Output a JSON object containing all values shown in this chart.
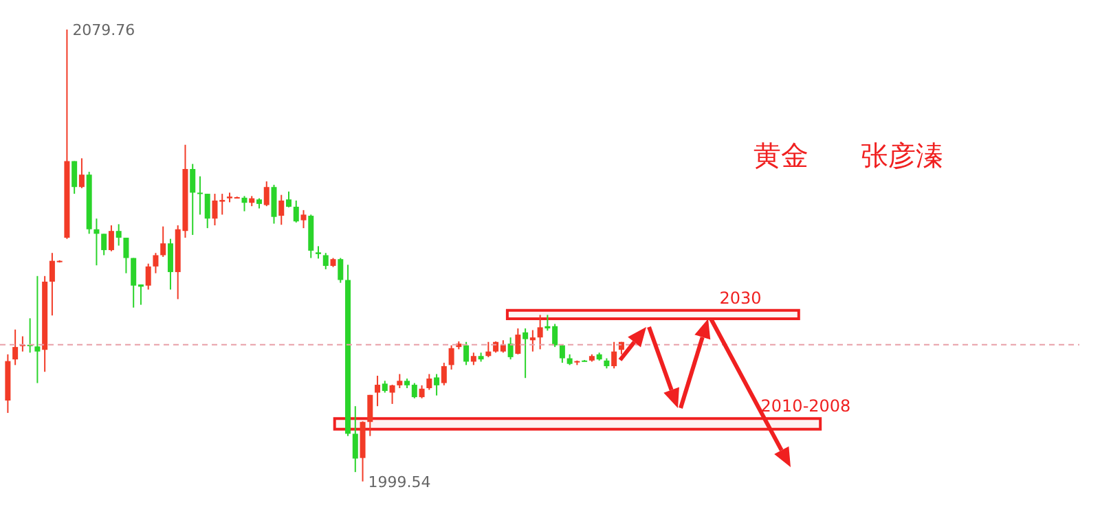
{
  "chart_data": {
    "type": "candlestick",
    "title": "黄金      张彦溱",
    "categories": [
      null,
      null,
      null,
      null,
      null,
      null,
      null,
      null,
      null,
      null,
      null,
      null,
      null,
      null,
      null,
      null,
      null,
      null,
      null,
      null,
      null,
      null,
      null,
      null,
      null,
      null,
      null,
      null,
      null,
      null,
      null,
      null,
      null,
      null,
      null,
      null,
      null,
      null,
      null,
      null,
      null,
      null,
      null,
      null,
      null,
      null,
      null,
      null,
      null,
      null,
      null,
      null,
      null,
      null,
      null,
      null,
      null,
      null,
      null,
      null,
      null,
      null,
      null,
      null,
      null,
      null,
      null,
      null,
      null,
      null,
      null,
      null,
      null,
      null,
      null,
      null,
      null,
      null,
      null,
      null,
      null,
      null,
      null,
      null
    ],
    "ohlc": [
      [
        2013.9,
        2022.1,
        2011.7,
        2020.9
      ],
      [
        2021.2,
        2026.5,
        2020.2,
        2023.4
      ],
      [
        2023.7,
        2025.3,
        2022.6,
        2023.8
      ],
      [
        2023.8,
        2028.5,
        2022.4,
        2023.6
      ],
      [
        2023.5,
        2036.0,
        2017.0,
        2022.6
      ],
      [
        2022.9,
        2036.0,
        2019.0,
        2035.0
      ],
      [
        2035.0,
        2040.1,
        2029.0,
        2038.7
      ],
      [
        2038.6,
        2038.8,
        2038.4,
        2038.7
      ],
      [
        2042.8,
        2079.76,
        2042.6,
        2056.4
      ],
      [
        2056.4,
        2056.4,
        2050.6,
        2051.8
      ],
      [
        2051.8,
        2056.9,
        2051.6,
        2054.0
      ],
      [
        2054.0,
        2054.5,
        2043.5,
        2044.3
      ],
      [
        2044.3,
        2046.2,
        2037.9,
        2043.5
      ],
      [
        2043.5,
        2043.5,
        2039.7,
        2040.6
      ],
      [
        2040.6,
        2045.0,
        2040.4,
        2044.0
      ],
      [
        2044.0,
        2045.2,
        2041.4,
        2042.8
      ],
      [
        2042.8,
        2042.8,
        2036.5,
        2039.2
      ],
      [
        2039.2,
        2039.2,
        2030.4,
        2034.3
      ],
      [
        2034.5,
        2034.5,
        2030.9,
        2034.1
      ],
      [
        2034.3,
        2038.2,
        2033.6,
        2037.7
      ],
      [
        2037.7,
        2040.1,
        2036.5,
        2039.7
      ],
      [
        2039.7,
        2044.8,
        2039.4,
        2041.8
      ],
      [
        2041.8,
        2042.6,
        2033.6,
        2036.7
      ],
      [
        2036.7,
        2045.0,
        2031.9,
        2044.3
      ],
      [
        2044.0,
        2059.3,
        2042.8,
        2055.0
      ],
      [
        2055.0,
        2055.9,
        2043.3,
        2050.8
      ],
      [
        2050.8,
        2053.7,
        2046.9,
        2050.6
      ],
      [
        2050.6,
        2050.6,
        2044.5,
        2046.2
      ],
      [
        2046.2,
        2050.6,
        2045.0,
        2049.4
      ],
      [
        2049.2,
        2050.6,
        2046.9,
        2049.5
      ],
      [
        2049.8,
        2050.8,
        2049.1,
        2050.1
      ],
      [
        2049.9,
        2050.1,
        2049.8,
        2050.0
      ],
      [
        2049.9,
        2050.2,
        2047.5,
        2049.0
      ],
      [
        2049.0,
        2050.2,
        2048.4,
        2049.8
      ],
      [
        2049.6,
        2049.8,
        2048.0,
        2048.8
      ],
      [
        2048.6,
        2052.8,
        2048.4,
        2051.8
      ],
      [
        2051.8,
        2052.2,
        2045.3,
        2046.5
      ],
      [
        2046.7,
        2050.4,
        2045.1,
        2049.4
      ],
      [
        2049.6,
        2051.0,
        2048.2,
        2048.3
      ],
      [
        2048.3,
        2049.4,
        2045.5,
        2045.7
      ],
      [
        2045.9,
        2047.7,
        2044.5,
        2046.9
      ],
      [
        2046.7,
        2046.9,
        2039.2,
        2040.5
      ],
      [
        2040.2,
        2041.3,
        2039.1,
        2039.9
      ],
      [
        2039.7,
        2040.1,
        2037.2,
        2037.8
      ],
      [
        2037.8,
        2039.2,
        2037.6,
        2039.0
      ],
      [
        2039.0,
        2039.2,
        2034.8,
        2035.3
      ],
      [
        2035.3,
        2038.0,
        2007.6,
        2008.0
      ],
      [
        2008.0,
        2012.9,
        2001.2,
        2003.6
      ],
      [
        2003.7,
        2010.2,
        1999.54,
        2010.1
      ],
      [
        2010.1,
        2014.9,
        2007.6,
        2014.9
      ],
      [
        2015.3,
        2018.3,
        2012.9,
        2016.7
      ],
      [
        2016.9,
        2017.4,
        2015.3,
        2015.6
      ],
      [
        2015.3,
        2016.7,
        2013.3,
        2016.6
      ],
      [
        2016.6,
        2018.6,
        2016.1,
        2017.4
      ],
      [
        2017.4,
        2017.8,
        2016.1,
        2016.6
      ],
      [
        2016.7,
        2017.0,
        2014.3,
        2014.5
      ],
      [
        2014.5,
        2016.6,
        2014.3,
        2016.0
      ],
      [
        2016.1,
        2018.6,
        2015.8,
        2017.8
      ],
      [
        2018.0,
        2018.6,
        2014.8,
        2016.6
      ],
      [
        2017.0,
        2020.6,
        2016.6,
        2020.0
      ],
      [
        2020.2,
        2023.7,
        2019.4,
        2023.2
      ],
      [
        2023.4,
        2024.4,
        2023.0,
        2024.0
      ],
      [
        2023.7,
        2024.3,
        2020.2,
        2020.8
      ],
      [
        2020.8,
        2022.4,
        2020.2,
        2021.8
      ],
      [
        2021.8,
        2022.4,
        2020.8,
        2021.2
      ],
      [
        2021.8,
        2024.3,
        2021.6,
        2022.6
      ],
      [
        2022.6,
        2024.4,
        2022.4,
        2024.3
      ],
      [
        2022.6,
        2024.6,
        2022.4,
        2023.8
      ],
      [
        2024.0,
        2025.1,
        2021.2,
        2021.6
      ],
      [
        2022.2,
        2026.7,
        2022.1,
        2025.6
      ],
      [
        2026.0,
        2026.7,
        2017.9,
        2024.8
      ],
      [
        2024.6,
        2026.4,
        2022.6,
        2025.1
      ],
      [
        2025.1,
        2029.1,
        2023.0,
        2026.9
      ],
      [
        2027.1,
        2029.1,
        2026.3,
        2026.7
      ],
      [
        2027.1,
        2027.5,
        2023.4,
        2023.7
      ],
      [
        2023.7,
        2023.8,
        2020.6,
        2021.4
      ],
      [
        2021.4,
        2022.1,
        2020.2,
        2020.4
      ],
      [
        2020.7,
        2021.0,
        2020.2,
        2020.9
      ],
      [
        2021.0,
        2021.1,
        2020.8,
        2020.9
      ],
      [
        2021.0,
        2022.1,
        2020.8,
        2021.8
      ],
      [
        2022.1,
        2022.4,
        2021.0,
        2021.2
      ],
      [
        2021.0,
        2021.4,
        2019.6,
        2020.0
      ],
      [
        2020.0,
        2024.3,
        2019.6,
        2022.6
      ],
      [
        2022.9,
        2024.3,
        2022.1,
        2024.3
      ]
    ],
    "colors": [
      "#f23b27",
      "#f23b27",
      "#f23b27",
      "#2ad42a",
      "#2ad42a",
      "#f23b27",
      "#f23b27",
      "#f23b27",
      "#f23b27",
      "#2ad42a",
      "#f23b27",
      "#2ad42a",
      "#2ad42a",
      "#2ad42a",
      "#f23b27",
      "#2ad42a",
      "#2ad42a",
      "#2ad42a",
      "#2ad42a",
      "#f23b27",
      "#f23b27",
      "#f23b27",
      "#2ad42a",
      "#f23b27",
      "#f23b27",
      "#2ad42a",
      "#2ad42a",
      "#2ad42a",
      "#f23b27",
      "#f23b27",
      "#f23b27",
      "#f23b27",
      "#2ad42a",
      "#f23b27",
      "#2ad42a",
      "#f23b27",
      "#2ad42a",
      "#f23b27",
      "#2ad42a",
      "#2ad42a",
      "#f23b27",
      "#2ad42a",
      "#2ad42a",
      "#2ad42a",
      "#f23b27",
      "#2ad42a",
      "#2ad42a",
      "#2ad42a",
      "#f23b27",
      "#f23b27",
      "#f23b27",
      "#2ad42a",
      "#f23b27",
      "#f23b27",
      "#2ad42a",
      "#2ad42a",
      "#f23b27",
      "#f23b27",
      "#2ad42a",
      "#f23b27",
      "#f23b27",
      "#f23b27",
      "#2ad42a",
      "#f23b27",
      "#2ad42a",
      "#f23b27",
      "#f23b27",
      "#f23b27",
      "#2ad42a",
      "#f23b27",
      "#2ad42a",
      "#f23b27",
      "#f23b27",
      "#2ad42a",
      "#2ad42a",
      "#2ad42a",
      "#2ad42a",
      "#f23b27",
      "#2ad42a",
      "#f23b27",
      "#2ad42a",
      "#2ad42a",
      "#f23b27",
      "#f23b27"
    ],
    "ylim": [
      1995,
      2085
    ],
    "tick_labels": false,
    "ref_lines": [
      {
        "axis": "y",
        "value": 2023.8,
        "color": "#e8a0a8",
        "line_style": "dashed"
      }
    ],
    "bands": [
      {
        "axis": "y",
        "from": 2028.4,
        "to": 2029.9,
        "label": "2030",
        "color": "#f02020"
      },
      {
        "axis": "y",
        "from": 2008.8,
        "to": 2010.7,
        "label": "2010-2008",
        "color": "#f02020"
      }
    ],
    "annotations": [
      "2079.76",
      "1999.54"
    ]
  }
}
